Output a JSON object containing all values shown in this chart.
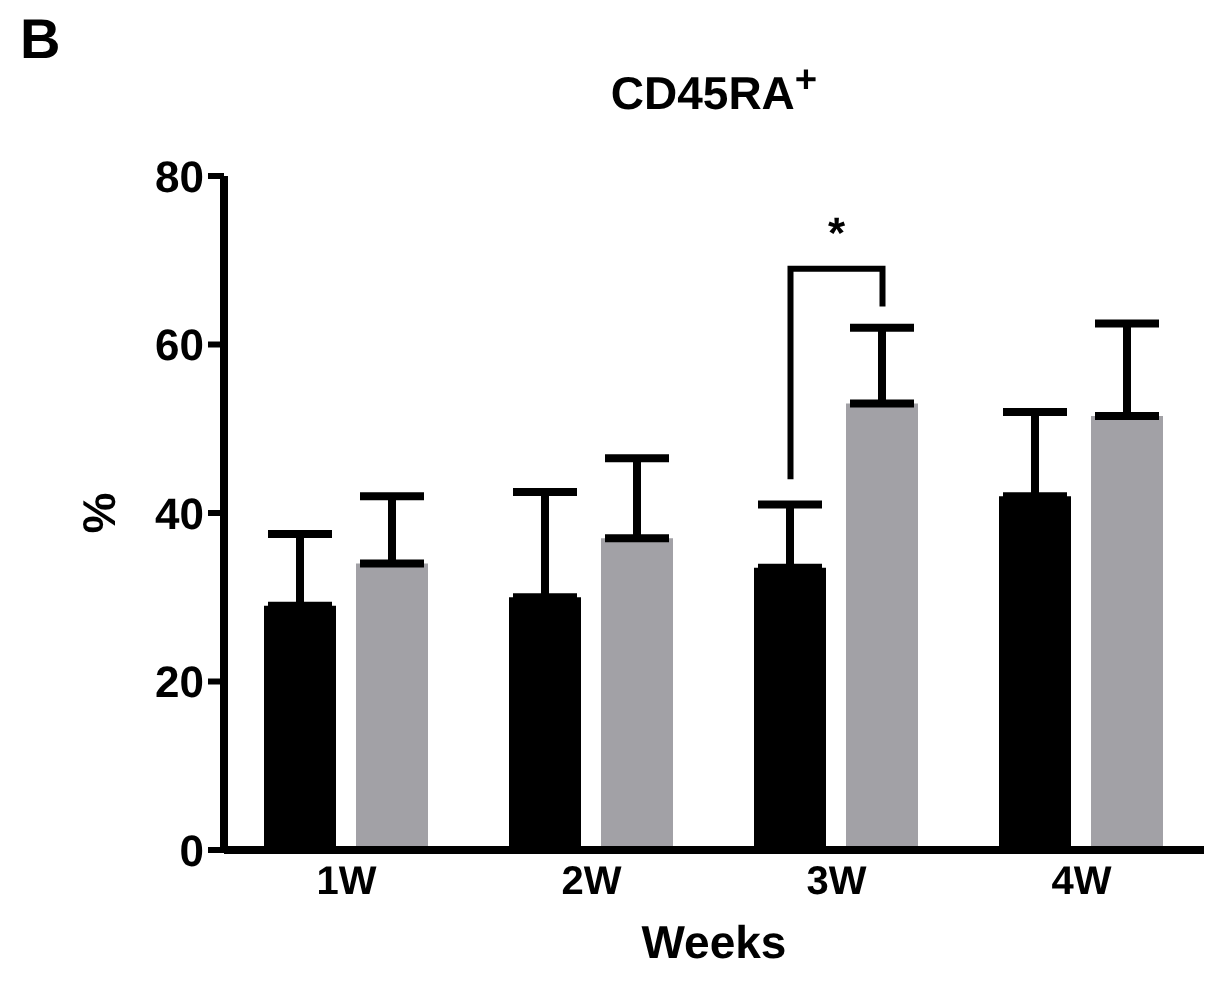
{
  "chart_data": {
    "type": "bar",
    "title": "CD45RA$^{+}$",
    "xlabel": "Weeks",
    "ylabel": "%",
    "categories": [
      "1W",
      "2W",
      "3W",
      "4W"
    ],
    "series": [
      {
        "color": "#000000",
        "values": [
          29,
          30,
          33.5,
          42
        ],
        "errors": [
          [
            29,
            37.5
          ],
          [
            30,
            42.5
          ],
          [
            33.5,
            41
          ],
          [
            42,
            52
          ]
        ]
      },
      {
        "color": "#a2a1a6",
        "values": [
          34,
          37,
          53,
          51.5
        ],
        "errors": [
          [
            34,
            42
          ],
          [
            37,
            46.5
          ],
          [
            53,
            62
          ],
          [
            51.5,
            62.5
          ]
        ]
      }
    ],
    "ylim": [
      0,
      80
    ],
    "yticks": [
      0,
      20,
      40,
      60,
      80
    ],
    "annotations": [
      "B",
      "*"
    ]
  }
}
